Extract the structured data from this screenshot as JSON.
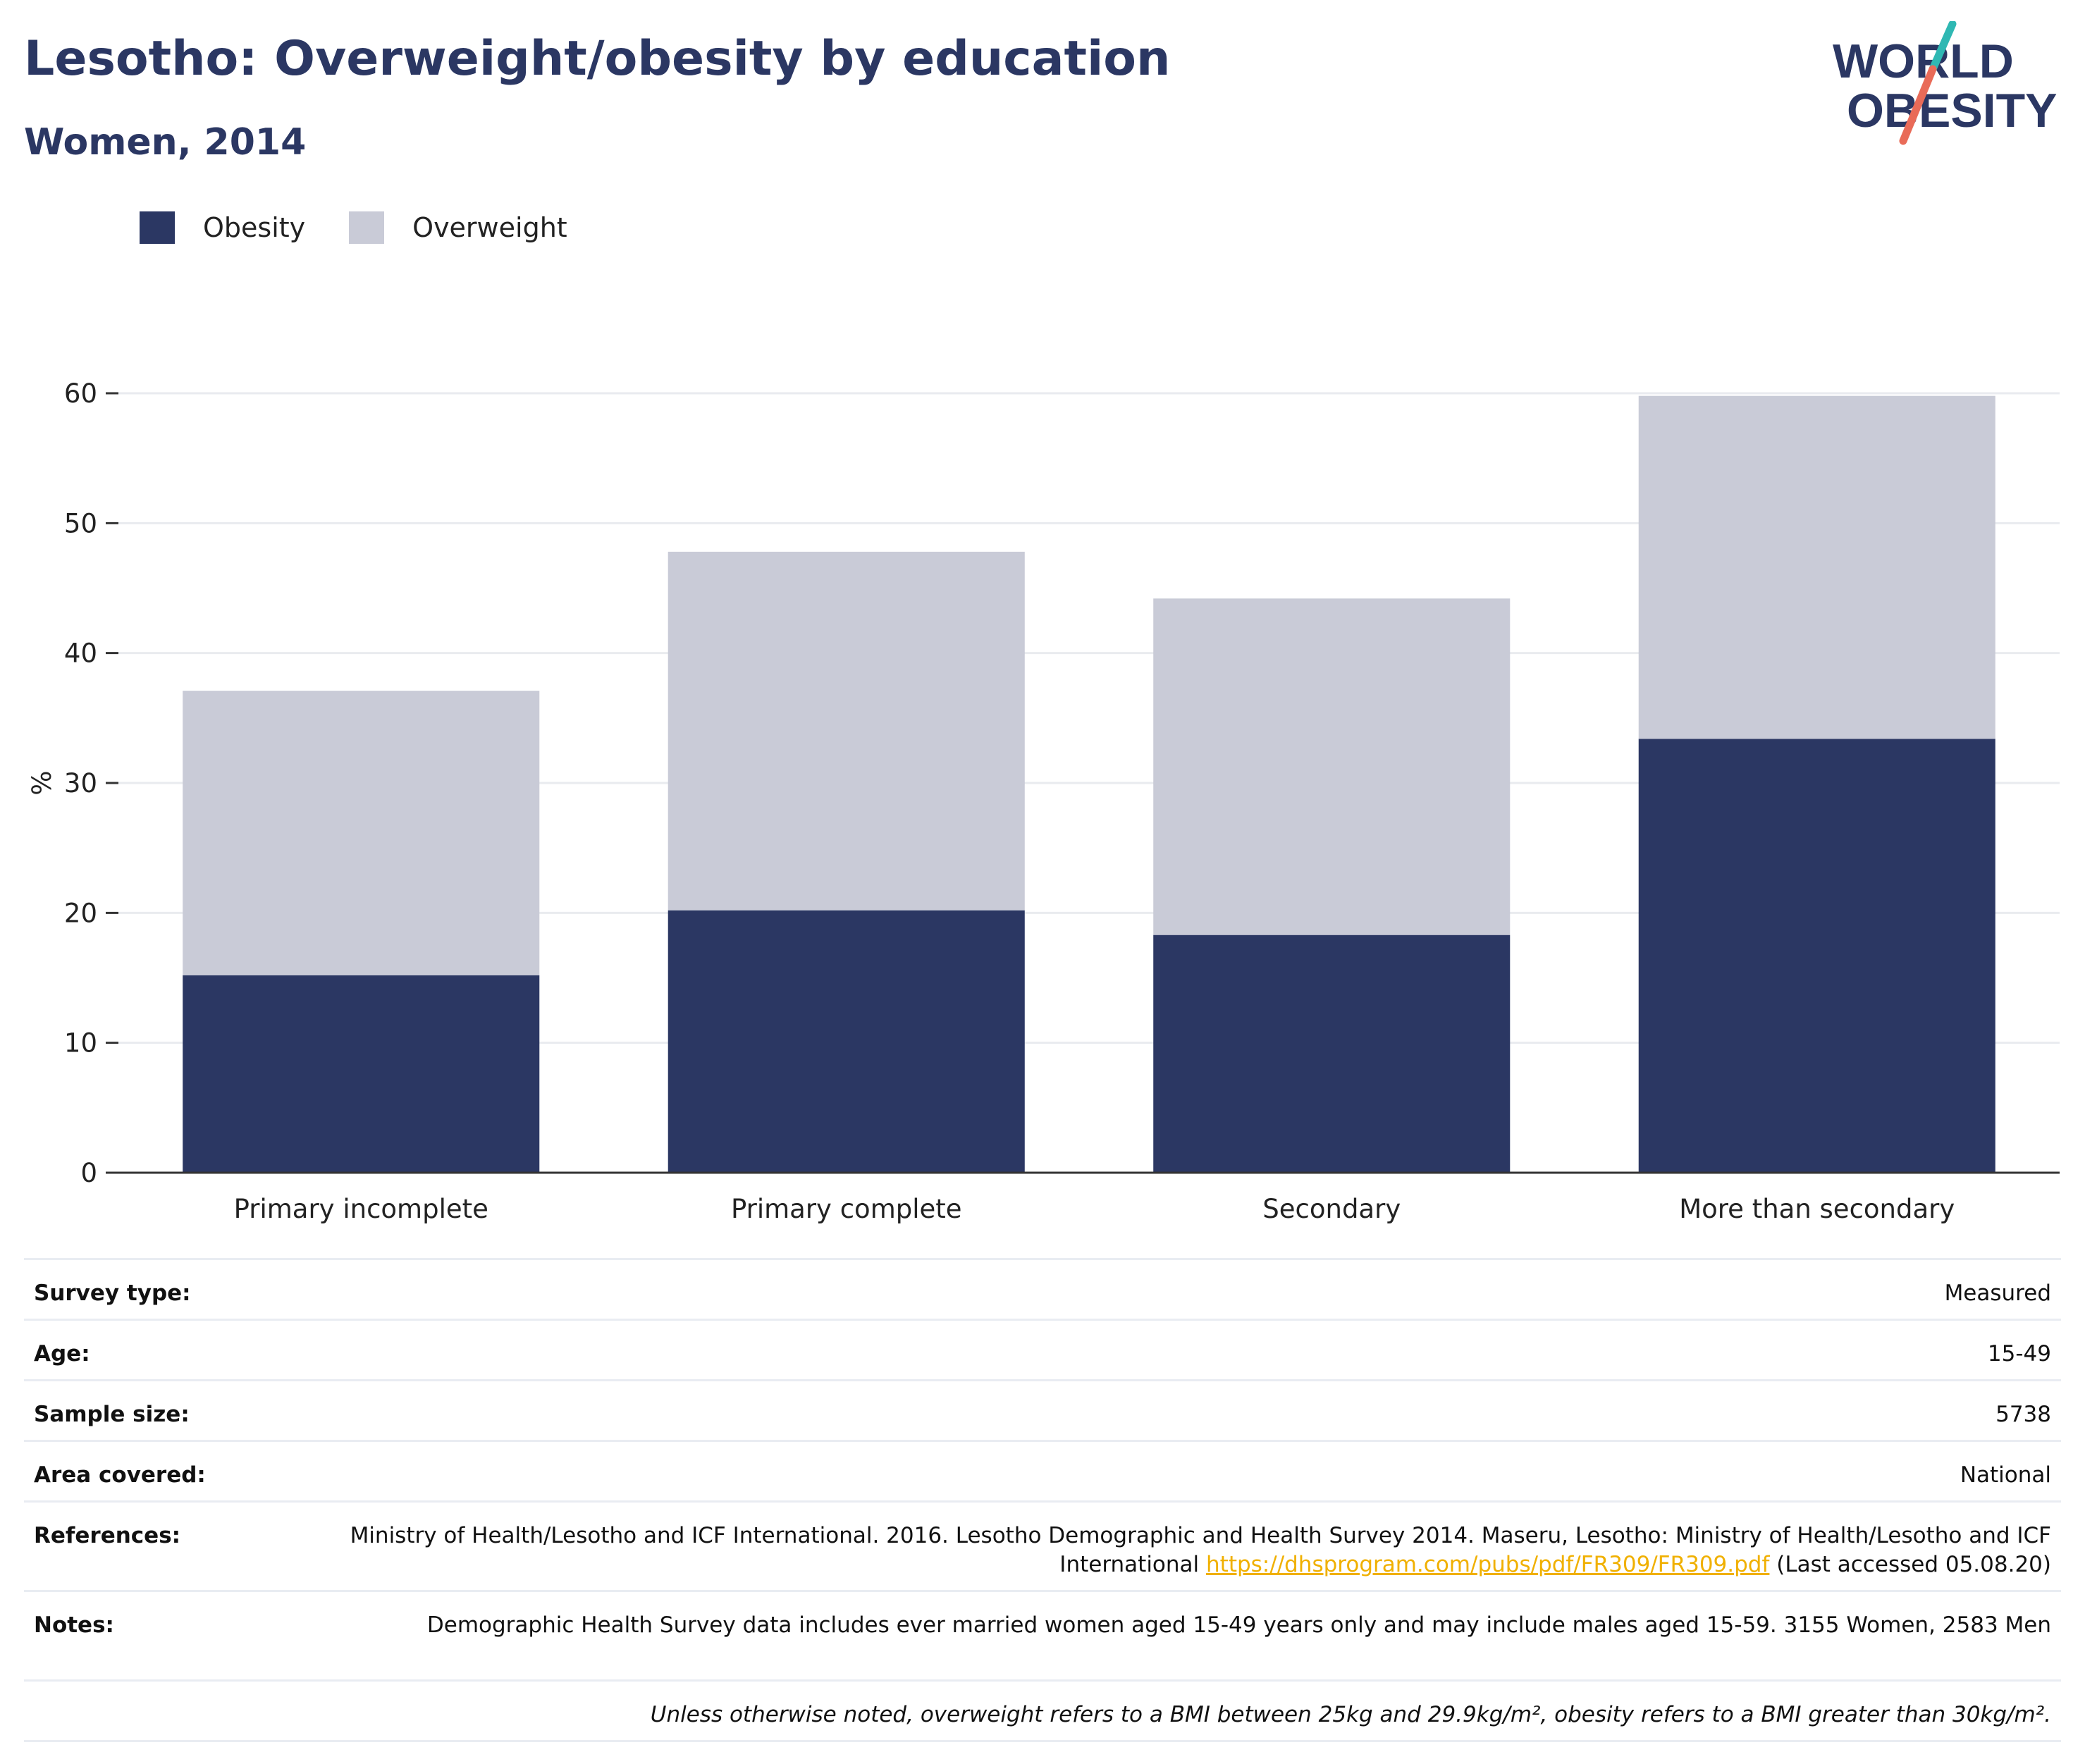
{
  "header": {
    "title": "Lesotho: Overweight/obesity by education",
    "subtitle": "Women, 2014"
  },
  "logo": {
    "line1": "WORLD",
    "line2": "OBESITY"
  },
  "colors": {
    "obesity": "#2b3763",
    "overweight": "#c9cbd7",
    "title": "#2b3763",
    "link": "#f0b000",
    "logo_teal": "#2fb8b3",
    "logo_coral": "#e96b58"
  },
  "chart_data": {
    "type": "bar",
    "stacked": true,
    "categories": [
      "Primary incomplete",
      "Primary complete",
      "Secondary",
      "More than secondary"
    ],
    "series": [
      {
        "name": "Obesity",
        "values": [
          15.2,
          20.2,
          18.3,
          33.4
        ]
      },
      {
        "name": "Overweight",
        "values": [
          21.9,
          27.6,
          25.9,
          26.4
        ]
      }
    ],
    "ylabel": "%",
    "xlabel": "",
    "ylim": [
      0,
      60
    ],
    "yticks": [
      0,
      10,
      20,
      30,
      40,
      50,
      60
    ],
    "grid": true,
    "legend_position": "top-left"
  },
  "info": {
    "survey_type": {
      "label": "Survey type:",
      "value": "Measured"
    },
    "age": {
      "label": "Age:",
      "value": "15-49"
    },
    "sample_size": {
      "label": "Sample size:",
      "value": "5738"
    },
    "area": {
      "label": "Area covered:",
      "value": "National"
    },
    "references": {
      "label": "References:",
      "text_before": "Ministry of Health/Lesotho and ICF International. 2016. Lesotho Demographic and Health Survey 2014. Maseru, Lesotho: Ministry of Health/Lesotho and ICF International",
      "link": "https://dhsprogram.com/pubs/pdf/FR309/FR309.pdf",
      "text_after": "(Last accessed 05.08.20)"
    },
    "notes": {
      "label": "Notes:",
      "value": "Demographic Health Survey data includes ever married women aged 15-49 years only and may include males aged 15-59. 3155 Women, 2583 Men"
    },
    "footnote": "Unless otherwise noted, overweight refers to a BMI between 25kg and 29.9kg/m², obesity refers to a BMI greater than 30kg/m²."
  }
}
